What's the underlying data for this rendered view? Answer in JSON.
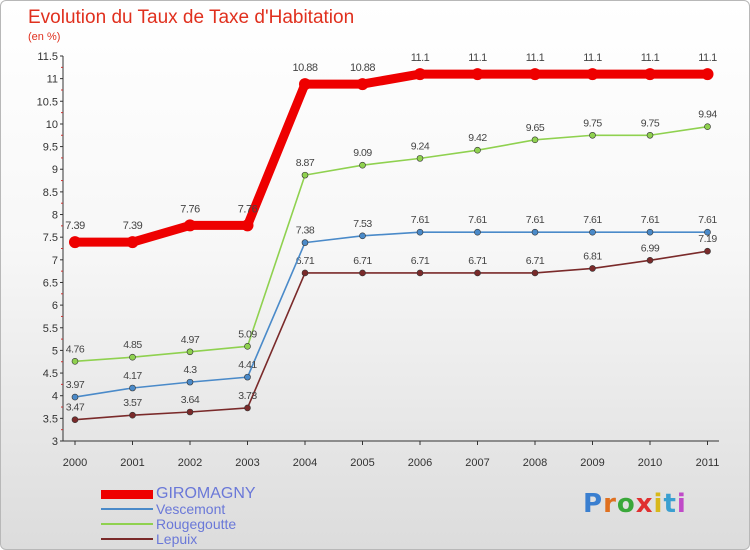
{
  "header": {
    "title": "Evolution du Taux de Taxe d'Habitation",
    "unit": "(en %)"
  },
  "logo": {
    "text": "Proxiti"
  },
  "chart_data": {
    "type": "line",
    "title": "Evolution du Taux de Taxe d'Habitation",
    "ylabel": "(en %)",
    "xlabel": "",
    "x": [
      "2000",
      "2001",
      "2002",
      "2003",
      "2004",
      "2005",
      "2006",
      "2007",
      "2008",
      "2009",
      "2010",
      "2011"
    ],
    "ylim": [
      3,
      11.5
    ],
    "yticks": [
      "3",
      "3.5",
      "4",
      "4.5",
      "5",
      "5.5",
      "6",
      "6.5",
      "7",
      "7.5",
      "8",
      "8.5",
      "9",
      "9.5",
      "10",
      "10.5",
      "11",
      "11.5"
    ],
    "grid": false,
    "legend_position": "bottom-left",
    "series": [
      {
        "name": "GIROMAGNY",
        "color": "#ee0000",
        "values": [
          7.39,
          7.39,
          7.76,
          7.76,
          10.88,
          10.88,
          11.1,
          11.1,
          11.1,
          11.1,
          11.1,
          11.1
        ],
        "labels": [
          "7.39",
          "7.39",
          "7.76",
          "7.76",
          "10.88",
          "10.88",
          "11.1",
          "11.1",
          "11.1",
          "11.1",
          "11.1",
          "11.1"
        ]
      },
      {
        "name": "Vescemont",
        "color": "#4a8ac9",
        "values": [
          3.97,
          4.17,
          4.3,
          4.41,
          7.38,
          7.53,
          7.61,
          7.61,
          7.61,
          7.61,
          7.61,
          7.61
        ],
        "labels": [
          "3.97",
          "4.17",
          "4.3",
          "4.41",
          "7.38",
          "7.53",
          "7.61",
          "7.61",
          "7.61",
          "7.61",
          "7.61",
          "7.61"
        ]
      },
      {
        "name": "Rougegoutte",
        "color": "#8fd14f",
        "values": [
          4.76,
          4.85,
          4.97,
          5.09,
          8.87,
          9.09,
          9.24,
          9.42,
          9.65,
          9.75,
          9.75,
          9.94
        ],
        "labels": [
          "4.76",
          "4.85",
          "4.97",
          "5.09",
          "8.87",
          "9.09",
          "9.24",
          "9.42",
          "9.65",
          "9.75",
          "9.75",
          "9.94"
        ]
      },
      {
        "name": "Lepuix",
        "color": "#7a2a2a",
        "values": [
          3.47,
          3.57,
          3.64,
          3.73,
          6.71,
          6.71,
          6.71,
          6.71,
          6.71,
          6.81,
          6.99,
          7.19
        ],
        "labels": [
          "3.47",
          "3.57",
          "3.64",
          "3.73",
          "6.71",
          "6.71",
          "6.71",
          "6.71",
          "6.71",
          "6.81",
          "6.99",
          "7.19"
        ]
      }
    ]
  }
}
